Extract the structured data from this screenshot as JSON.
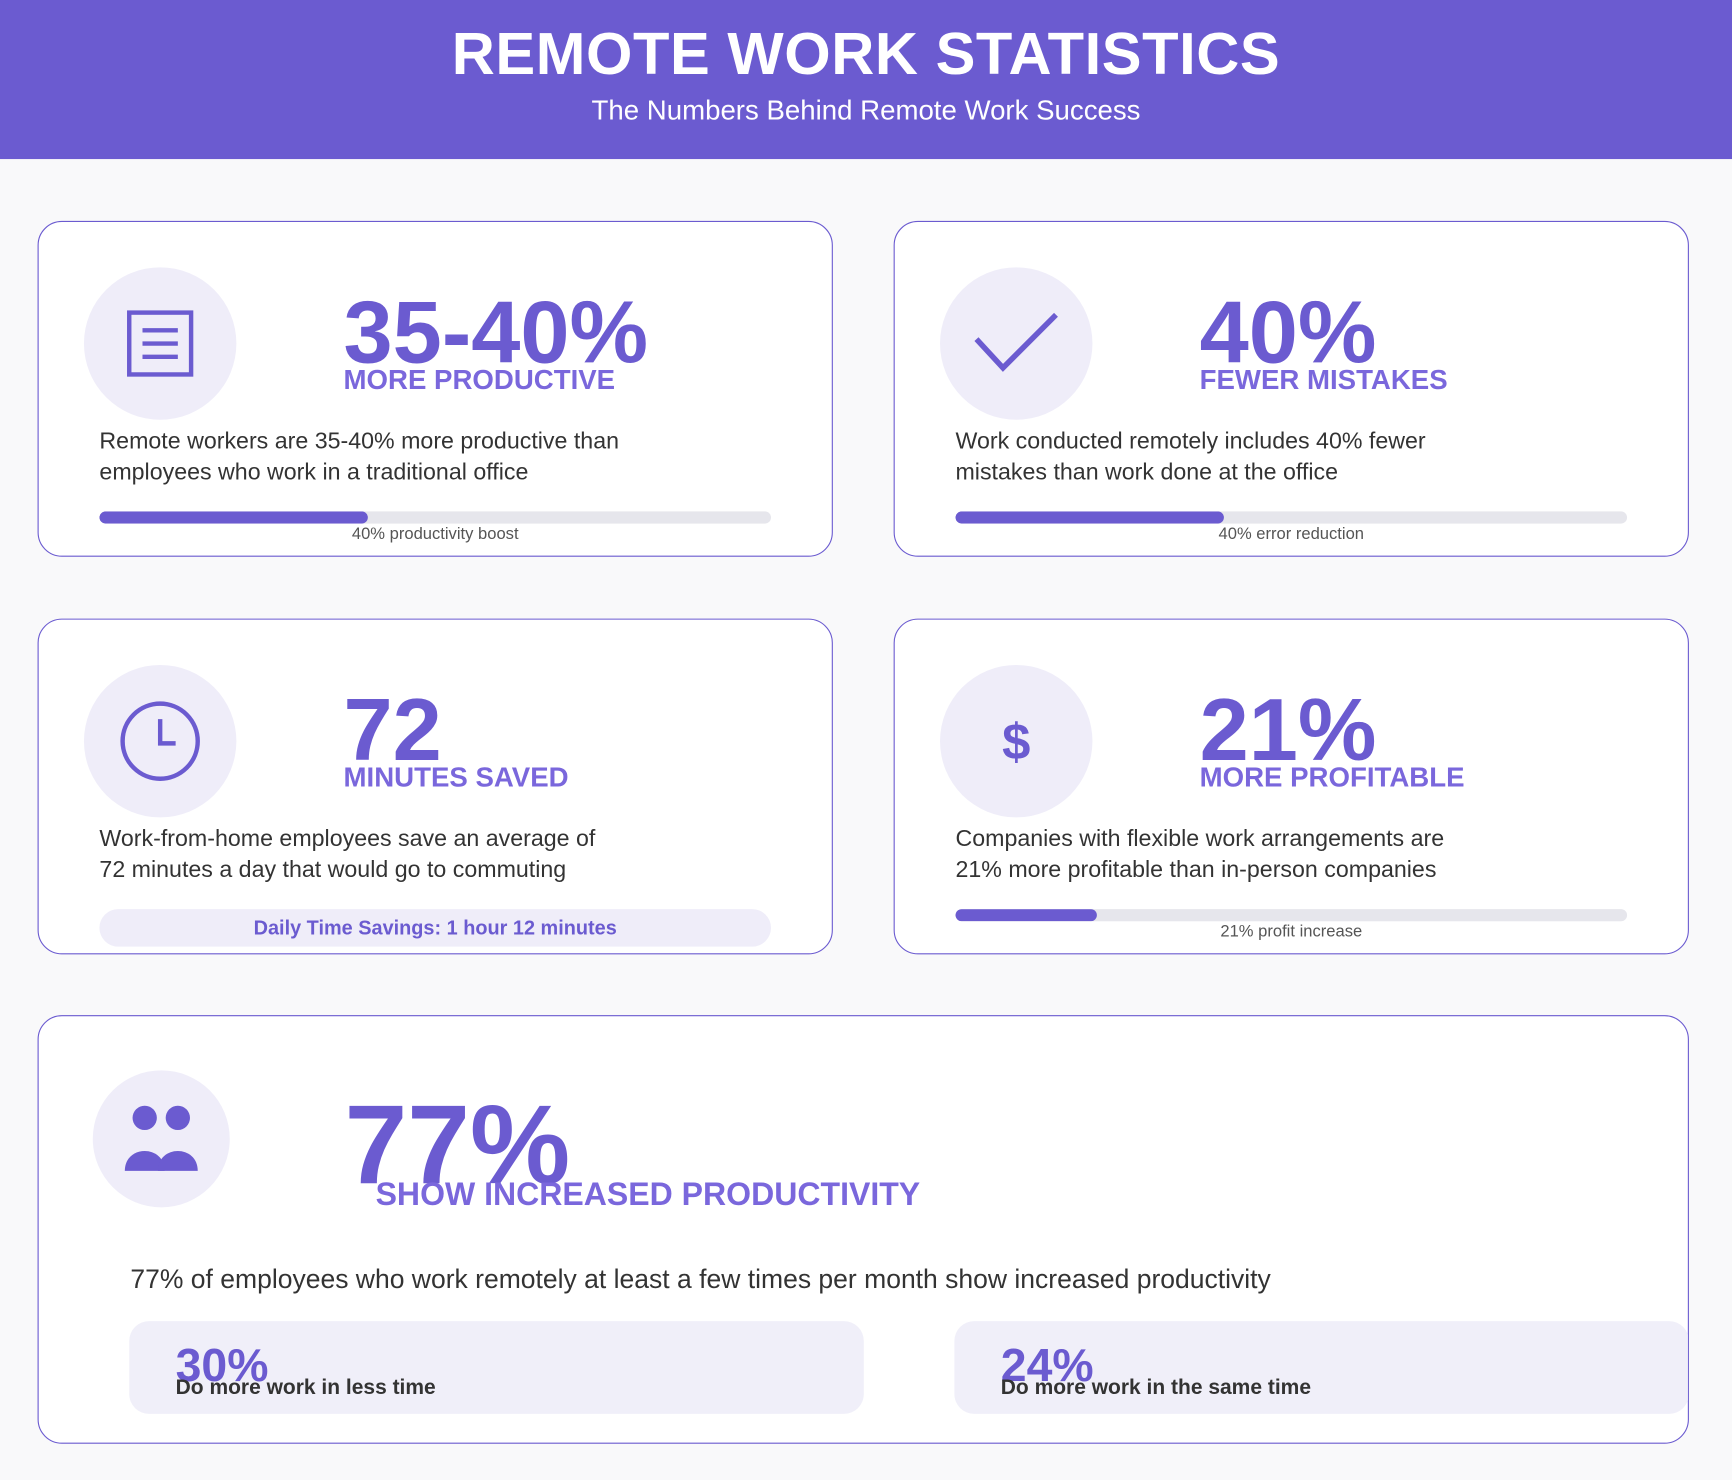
{
  "header": {
    "title": "REMOTE WORK STATISTICS",
    "subtitle": "The Numbers Behind Remote Work Success"
  },
  "cards": [
    {
      "stat": "35-40%",
      "label": "MORE PRODUCTIVE",
      "description": [
        "Remote workers are 35-40% more productive than",
        "employees who work in a traditional office"
      ],
      "bar": {
        "value": 40,
        "label": "40% productivity boost"
      }
    },
    {
      "stat": "40%",
      "label": "FEWER MISTAKES",
      "description": [
        "Work conducted remotely includes 40% fewer",
        "mistakes than work done at the office"
      ],
      "bar": {
        "value": 40,
        "label": "40% error reduction"
      }
    },
    {
      "stat": "72",
      "label": "MINUTES SAVED",
      "description": [
        "Work-from-home employees save an average of",
        "72 minutes a day that would go to commuting"
      ],
      "note": "Daily Time Savings: 1 hour 12 minutes"
    },
    {
      "icon_text": "$",
      "stat": "21%",
      "label": "MORE PROFITABLE",
      "description": [
        "Companies with flexible work arrangements are",
        "21% more profitable than in-person companies"
      ],
      "bar": {
        "value": 21,
        "label": "21% profit increase"
      }
    }
  ],
  "featured": {
    "stat": "77%",
    "label": "SHOW INCREASED PRODUCTIVITY",
    "description": "77% of employees who work remotely at least a few times per month show increased productivity",
    "items": [
      {
        "stat": "30%",
        "label": "Do more work in less time"
      },
      {
        "stat": "24%",
        "label": "Do more work in the same time"
      }
    ]
  }
}
